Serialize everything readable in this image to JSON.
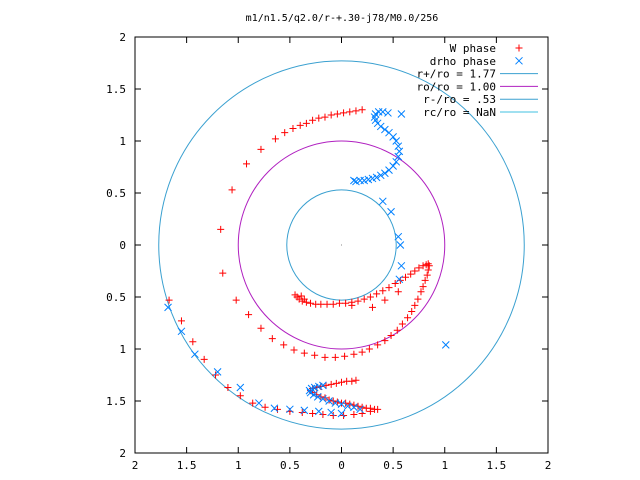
{
  "chart_data": {
    "type": "scatter",
    "title": "m1/n1.5/q2.0/r-+.30-j78/M0.0/256",
    "xlim": [
      -2,
      2
    ],
    "ylim": [
      -2,
      2
    ],
    "x_ticks": [
      "2",
      "1.5",
      "1",
      "0.5",
      "0",
      "0.5",
      "1",
      "1.5",
      "2"
    ],
    "y_ticks": [
      "2",
      "1.5",
      "1",
      "0.5",
      "0",
      "0.5",
      "1",
      "1.5",
      "2"
    ],
    "grid": false,
    "legend_position": "top-right",
    "colors": {
      "w_phase": "#ff0000",
      "drho_phase": "#0080ff",
      "r_plus": "#3aa0d0",
      "r_o": "#b020c0",
      "r_minus": "#3aa0d0",
      "r_c": "#40c0e0"
    },
    "series": [
      {
        "name": "W phase",
        "marker": "plus",
        "points": [
          [
            0.32,
            -1.58
          ],
          [
            0.28,
            -1.57
          ],
          [
            0.24,
            -1.57
          ],
          [
            0.2,
            -1.56
          ],
          [
            0.16,
            -1.55
          ],
          [
            0.12,
            -1.54
          ],
          [
            0.08,
            -1.53
          ],
          [
            0.04,
            -1.52
          ],
          [
            0.0,
            -1.52
          ],
          [
            -0.04,
            -1.51
          ],
          [
            -0.08,
            -1.5
          ],
          [
            -0.12,
            -1.49
          ],
          [
            -0.16,
            -1.47
          ],
          [
            -0.2,
            -1.46
          ],
          [
            -0.24,
            -1.44
          ],
          [
            -0.28,
            -1.42
          ],
          [
            -0.3,
            -1.4
          ],
          [
            -0.28,
            -1.38
          ],
          [
            -0.24,
            -1.37
          ],
          [
            -0.2,
            -1.36
          ],
          [
            -0.15,
            -1.35
          ],
          [
            -0.1,
            -1.34
          ],
          [
            -0.05,
            -1.33
          ],
          [
            0.0,
            -1.32
          ],
          [
            0.05,
            -1.31
          ],
          [
            0.1,
            -1.31
          ],
          [
            0.14,
            -1.3
          ],
          [
            0.35,
            -1.58
          ],
          [
            0.28,
            -1.6
          ],
          [
            0.2,
            -1.62
          ],
          [
            0.12,
            -1.63
          ],
          [
            0.02,
            -1.64
          ],
          [
            -0.08,
            -1.64
          ],
          [
            -0.18,
            -1.63
          ],
          [
            -0.28,
            -1.62
          ],
          [
            -0.38,
            -1.61
          ],
          [
            -0.5,
            -1.6
          ],
          [
            -0.62,
            -1.58
          ],
          [
            -0.74,
            -1.56
          ],
          [
            -0.86,
            -1.52
          ],
          [
            -0.98,
            -1.45
          ],
          [
            -1.1,
            -1.37
          ],
          [
            -1.22,
            -1.25
          ],
          [
            -1.33,
            -1.1
          ],
          [
            -1.44,
            -0.93
          ],
          [
            -1.55,
            -0.73
          ],
          [
            -1.67,
            -0.53
          ],
          [
            -0.45,
            -0.48
          ],
          [
            -0.43,
            -0.5
          ],
          [
            -0.41,
            -0.52
          ],
          [
            -0.38,
            -0.54
          ],
          [
            -0.34,
            -0.55
          ],
          [
            -0.3,
            -0.56
          ],
          [
            -0.25,
            -0.57
          ],
          [
            -0.2,
            -0.57
          ],
          [
            -0.14,
            -0.57
          ],
          [
            -0.08,
            -0.57
          ],
          [
            -0.02,
            -0.56
          ],
          [
            0.04,
            -0.56
          ],
          [
            0.1,
            -0.55
          ],
          [
            0.16,
            -0.54
          ],
          [
            0.22,
            -0.52
          ],
          [
            0.28,
            -0.5
          ],
          [
            0.34,
            -0.47
          ],
          [
            0.4,
            -0.44
          ],
          [
            0.46,
            -0.41
          ],
          [
            0.52,
            -0.37
          ],
          [
            0.57,
            -0.34
          ],
          [
            0.62,
            -0.31
          ],
          [
            0.67,
            -0.28
          ],
          [
            0.71,
            -0.25
          ],
          [
            0.75,
            -0.22
          ],
          [
            0.79,
            -0.2
          ],
          [
            0.82,
            -0.19
          ],
          [
            0.84,
            -0.18
          ],
          [
            0.85,
            -0.2
          ],
          [
            0.84,
            -0.24
          ],
          [
            0.83,
            -0.29
          ],
          [
            0.81,
            -0.34
          ],
          [
            0.79,
            -0.4
          ],
          [
            0.77,
            -0.45
          ],
          [
            0.74,
            -0.52
          ],
          [
            0.71,
            -0.58
          ],
          [
            0.68,
            -0.64
          ],
          [
            0.64,
            -0.7
          ],
          [
            0.59,
            -0.76
          ],
          [
            0.54,
            -0.82
          ],
          [
            0.48,
            -0.87
          ],
          [
            0.42,
            -0.92
          ],
          [
            0.35,
            -0.96
          ],
          [
            0.27,
            -1.0
          ],
          [
            0.2,
            -1.03
          ],
          [
            0.12,
            -1.05
          ],
          [
            0.03,
            -1.07
          ],
          [
            -0.06,
            -1.08
          ],
          [
            -0.16,
            -1.08
          ],
          [
            -0.26,
            -1.06
          ],
          [
            -0.36,
            -1.04
          ],
          [
            -0.46,
            -1.01
          ],
          [
            -0.56,
            -0.96
          ],
          [
            -0.67,
            -0.9
          ],
          [
            -0.78,
            -0.8
          ],
          [
            -0.9,
            -0.67
          ],
          [
            -1.02,
            -0.53
          ],
          [
            -1.15,
            -0.27
          ],
          [
            -1.17,
            0.15
          ],
          [
            -1.06,
            0.53
          ],
          [
            -0.92,
            0.78
          ],
          [
            -0.78,
            0.92
          ],
          [
            -0.64,
            1.02
          ],
          [
            -0.55,
            1.08
          ],
          [
            -0.47,
            1.12
          ],
          [
            -0.4,
            1.15
          ],
          [
            -0.34,
            1.17
          ],
          [
            -0.28,
            1.2
          ],
          [
            -0.22,
            1.22
          ],
          [
            -0.16,
            1.23
          ],
          [
            -0.1,
            1.25
          ],
          [
            -0.04,
            1.26
          ],
          [
            0.02,
            1.27
          ],
          [
            0.08,
            1.28
          ],
          [
            0.14,
            1.29
          ],
          [
            0.2,
            1.3
          ],
          [
            -0.39,
            -0.49
          ],
          [
            -0.36,
            -0.52
          ],
          [
            0.1,
            -0.58
          ],
          [
            0.3,
            -0.6
          ],
          [
            0.42,
            -0.53
          ],
          [
            0.55,
            -0.45
          ]
        ]
      },
      {
        "name": "drho phase",
        "marker": "cross",
        "points": [
          [
            0.18,
            -1.58
          ],
          [
            0.12,
            -1.56
          ],
          [
            0.06,
            -1.55
          ],
          [
            0.0,
            -1.53
          ],
          [
            -0.06,
            -1.52
          ],
          [
            -0.12,
            -1.5
          ],
          [
            -0.18,
            -1.48
          ],
          [
            -0.23,
            -1.46
          ],
          [
            -0.27,
            -1.44
          ],
          [
            -0.3,
            -1.42
          ],
          [
            -0.31,
            -1.4
          ],
          [
            -0.29,
            -1.38
          ],
          [
            -0.26,
            -1.37
          ],
          [
            -0.22,
            -1.36
          ],
          [
            -0.18,
            -1.35
          ],
          [
            0.0,
            -1.62
          ],
          [
            -0.1,
            -1.61
          ],
          [
            -0.22,
            -1.6
          ],
          [
            -0.36,
            -1.59
          ],
          [
            -0.5,
            -1.58
          ],
          [
            -0.65,
            -1.57
          ],
          [
            -0.8,
            -1.52
          ],
          [
            -0.98,
            -1.37
          ],
          [
            -1.2,
            -1.22
          ],
          [
            -1.42,
            -1.05
          ],
          [
            -1.55,
            -0.83
          ],
          [
            -1.68,
            -0.6
          ],
          [
            1.01,
            -0.96
          ],
          [
            0.56,
            -0.33
          ],
          [
            0.58,
            -0.2
          ],
          [
            0.57,
            0.0
          ],
          [
            0.55,
            0.08
          ],
          [
            0.48,
            0.32
          ],
          [
            0.4,
            0.42
          ],
          [
            0.12,
            0.62
          ],
          [
            0.14,
            0.61
          ],
          [
            0.18,
            0.62
          ],
          [
            0.22,
            0.62
          ],
          [
            0.26,
            0.63
          ],
          [
            0.3,
            0.64
          ],
          [
            0.34,
            0.65
          ],
          [
            0.38,
            0.67
          ],
          [
            0.42,
            0.69
          ],
          [
            0.46,
            0.72
          ],
          [
            0.5,
            0.76
          ],
          [
            0.53,
            0.8
          ],
          [
            0.55,
            0.85
          ],
          [
            0.56,
            0.9
          ],
          [
            0.55,
            0.95
          ],
          [
            0.53,
            1.0
          ],
          [
            0.5,
            1.04
          ],
          [
            0.46,
            1.08
          ],
          [
            0.42,
            1.11
          ],
          [
            0.38,
            1.14
          ],
          [
            0.35,
            1.17
          ],
          [
            0.33,
            1.2
          ],
          [
            0.32,
            1.23
          ],
          [
            0.33,
            1.26
          ],
          [
            0.36,
            1.28
          ],
          [
            0.4,
            1.28
          ],
          [
            0.45,
            1.27
          ],
          [
            0.58,
            1.26
          ]
        ]
      }
    ],
    "circles": [
      {
        "name": "r+/ro = 1.77",
        "radius": 1.77
      },
      {
        "name": "ro/ro = 1.00",
        "radius": 1.0
      },
      {
        "name": "r-/ro = .53",
        "radius": 0.53
      },
      {
        "name": "rc/ro = NaN",
        "radius": null
      }
    ]
  }
}
